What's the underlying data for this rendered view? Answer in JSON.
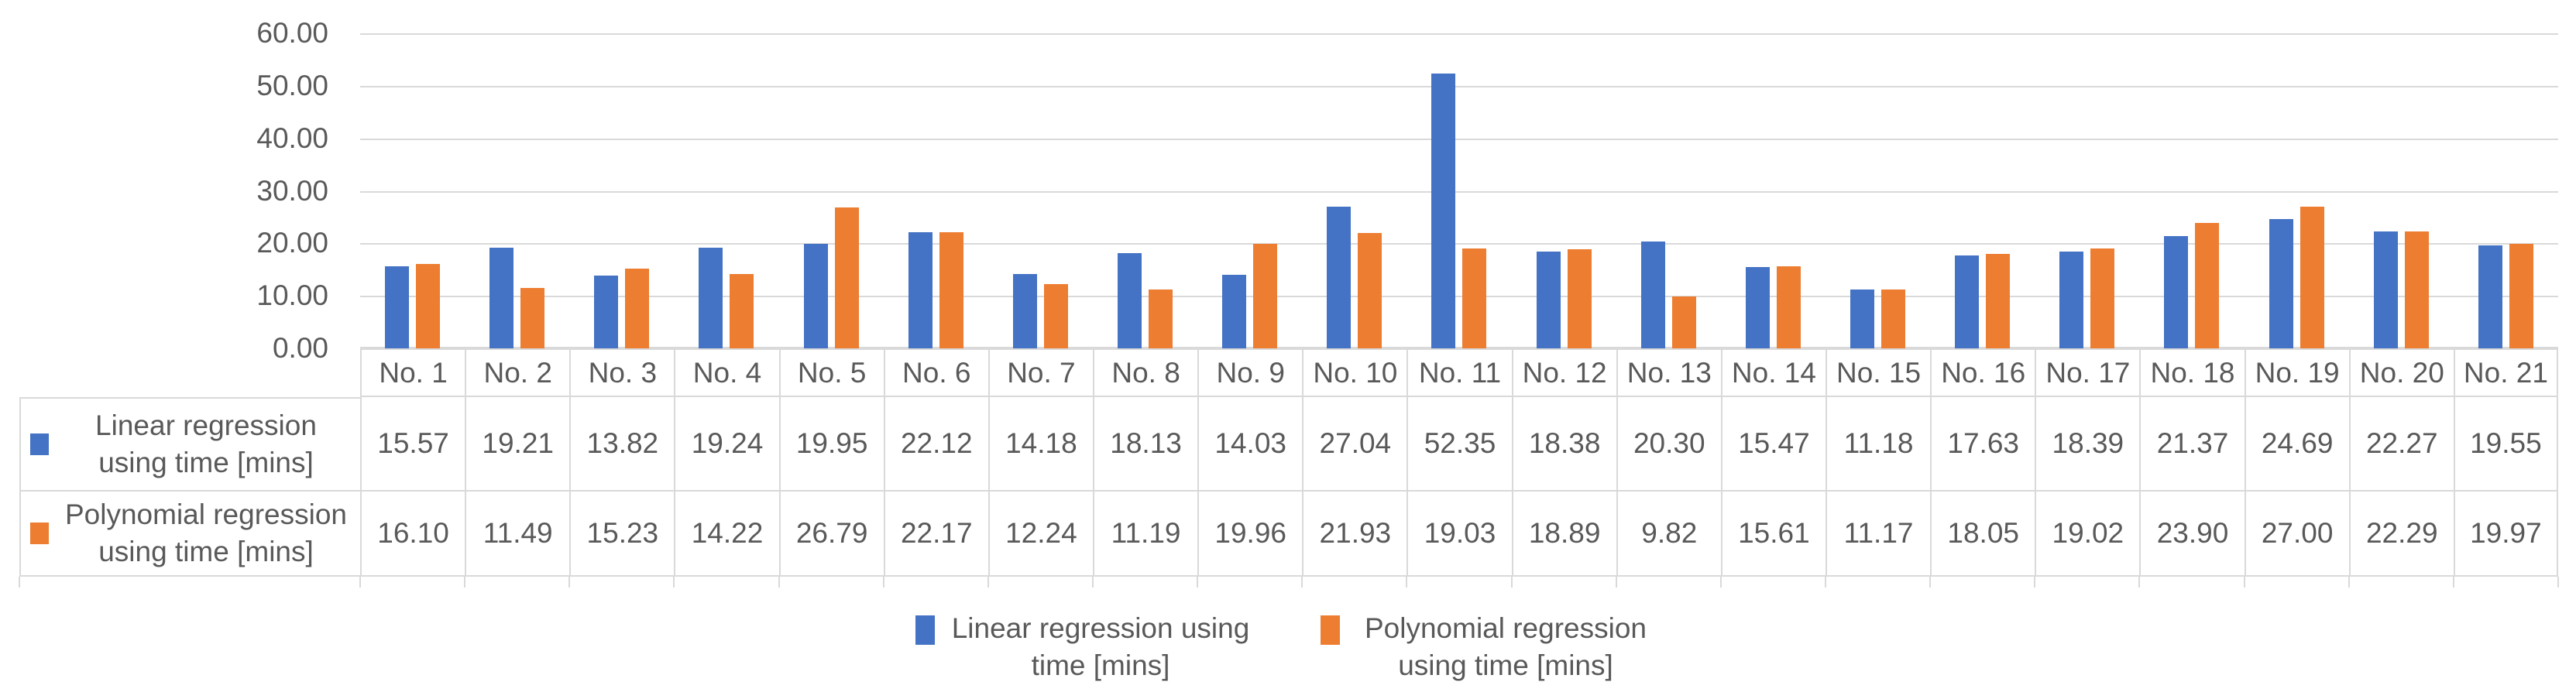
{
  "figure": {
    "background_color": "#FFFFFF",
    "text_color": "#595959",
    "grid_color": "#D9D9D9",
    "table_border_color": "#D9D9D9"
  },
  "chart_data": {
    "type": "bar",
    "title": "",
    "xlabel": "",
    "ylabel": "",
    "ylim": [
      0,
      60
    ],
    "ytick_interval": 10,
    "ytick_labels": [
      "60.00",
      "50.00",
      "40.00",
      "30.00",
      "20.00",
      "10.00",
      "0.00"
    ],
    "grid": true,
    "legend_position": "bottom",
    "data_table_shown": true,
    "value_decimals": 2,
    "categories": [
      "No. 1",
      "No. 2",
      "No. 3",
      "No. 4",
      "No. 5",
      "No. 6",
      "No. 7",
      "No. 8",
      "No. 9",
      "No. 10",
      "No. 11",
      "No. 12",
      "No. 13",
      "No. 14",
      "No. 15",
      "No. 16",
      "No. 17",
      "No. 18",
      "No. 19",
      "No. 20",
      "No. 21"
    ],
    "series": [
      {
        "name": "Linear regression using time [mins]",
        "color": "#4472C4",
        "values": [
          15.57,
          19.21,
          13.82,
          19.24,
          19.95,
          22.12,
          14.18,
          18.13,
          14.03,
          27.04,
          52.35,
          18.38,
          20.3,
          15.47,
          11.18,
          17.63,
          18.39,
          21.37,
          24.69,
          22.27,
          19.55
        ]
      },
      {
        "name": "Polynomial regression using time [mins]",
        "color": "#ED7D31",
        "values": [
          16.1,
          11.49,
          15.23,
          14.22,
          26.79,
          22.17,
          12.24,
          11.19,
          19.96,
          21.93,
          19.03,
          18.89,
          9.82,
          15.61,
          11.17,
          18.05,
          19.02,
          23.9,
          27.0,
          22.29,
          19.97
        ]
      }
    ]
  }
}
